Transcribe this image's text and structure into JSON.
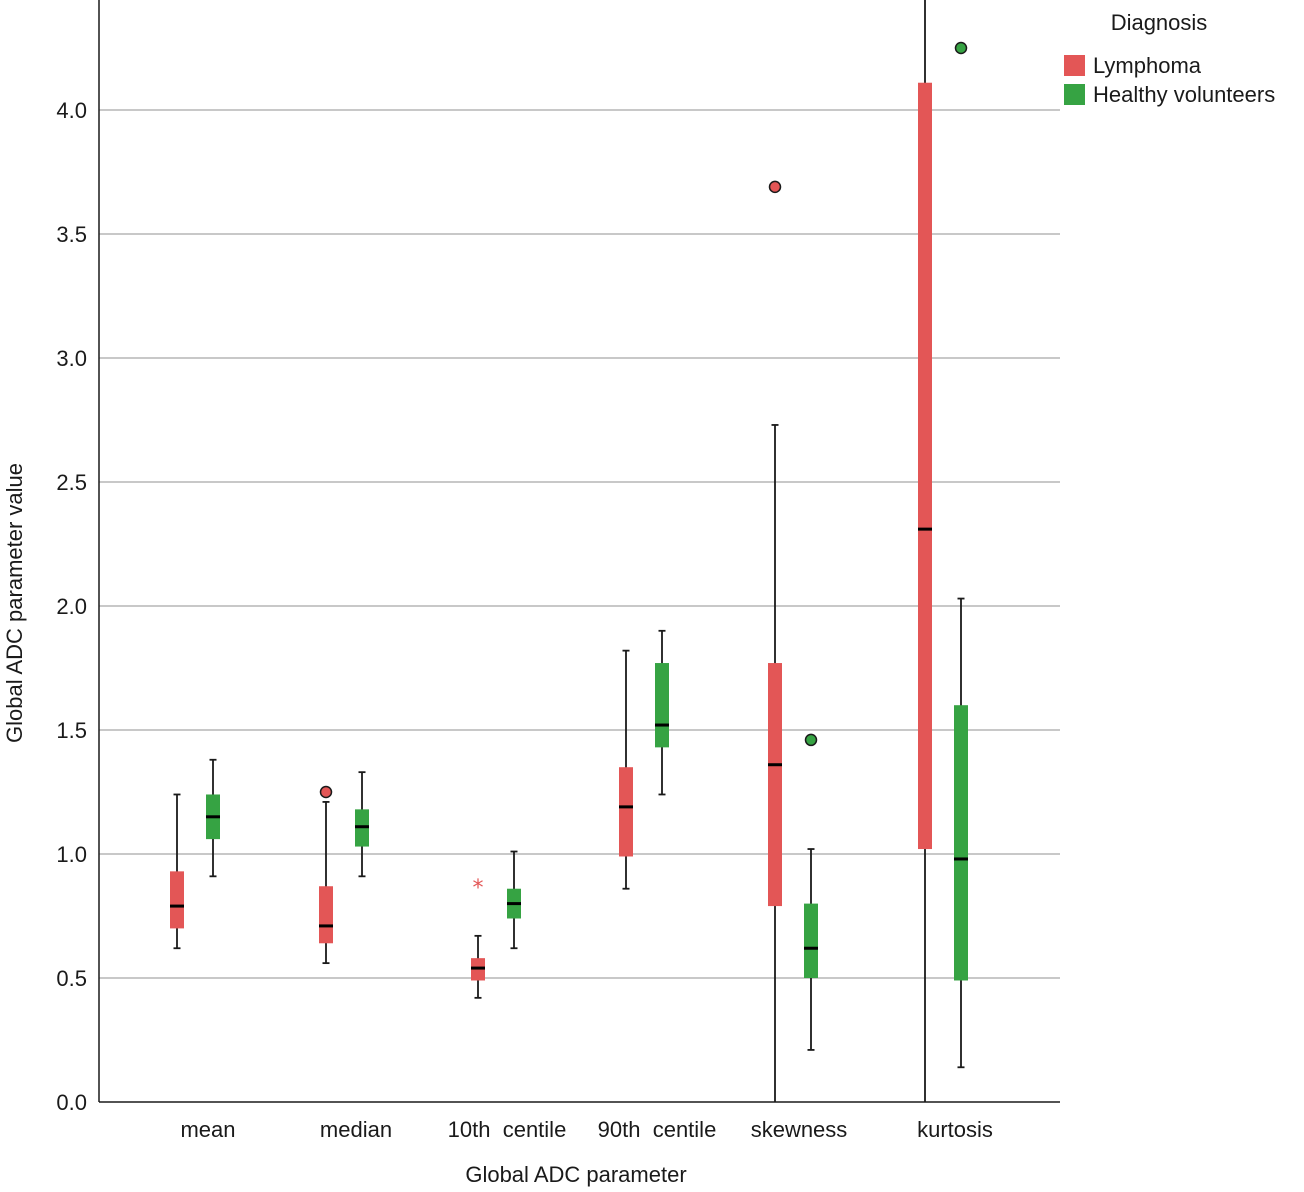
{
  "chart_data": {
    "type": "boxplot",
    "xlabel": "Global ADC parameter",
    "ylabel": "Global ADC parameter value",
    "ylim": [
      0.0,
      4.4
    ],
    "yticks": [
      0.0,
      0.5,
      1.0,
      1.5,
      2.0,
      2.5,
      3.0,
      3.5,
      4.0
    ],
    "ytick_labels": [
      "0.0",
      "0.5",
      "1.0",
      "1.5",
      "2.0",
      "2.5",
      "3.0",
      "3.5",
      "4.0"
    ],
    "categories": [
      "mean",
      "median",
      "10th  centile",
      "90th  centile",
      "skewness",
      "kurtosis"
    ],
    "grid": "horizontal",
    "legend": {
      "title": "Diagnosis",
      "placement": "top-right",
      "entries": [
        "Lymphoma",
        "Healthy volunteers"
      ]
    },
    "series": [
      {
        "name": "Lymphoma",
        "color": "#e35656",
        "boxes": [
          {
            "whisker_low": 0.62,
            "q1": 0.7,
            "median": 0.79,
            "q3": 0.93,
            "whisker_high": 1.24,
            "outliers": []
          },
          {
            "whisker_low": 0.56,
            "q1": 0.64,
            "median": 0.71,
            "q3": 0.87,
            "whisker_high": 1.21,
            "outliers": [
              1.25
            ]
          },
          {
            "whisker_low": 0.42,
            "q1": 0.49,
            "median": 0.54,
            "q3": 0.58,
            "whisker_high": 0.67,
            "extremes": [
              0.88
            ]
          },
          {
            "whisker_low": 0.86,
            "q1": 0.99,
            "median": 1.19,
            "q3": 1.35,
            "whisker_high": 1.82,
            "outliers": []
          },
          {
            "whisker_low": 0.0,
            "q1": 0.79,
            "median": 1.36,
            "q3": 1.77,
            "whisker_high": 2.73,
            "outliers": [
              3.69
            ]
          },
          {
            "whisker_low": 0.0,
            "q1": 1.02,
            "median": 2.31,
            "q3": 4.11,
            "whisker_high": 4.45,
            "outliers": []
          }
        ]
      },
      {
        "name": "Healthy volunteers",
        "color": "#36a343",
        "boxes": [
          {
            "whisker_low": 0.91,
            "q1": 1.06,
            "median": 1.15,
            "q3": 1.24,
            "whisker_high": 1.38,
            "outliers": []
          },
          {
            "whisker_low": 0.91,
            "q1": 1.03,
            "median": 1.11,
            "q3": 1.18,
            "whisker_high": 1.33,
            "outliers": []
          },
          {
            "whisker_low": 0.62,
            "q1": 0.74,
            "median": 0.8,
            "q3": 0.86,
            "whisker_high": 1.01,
            "outliers": []
          },
          {
            "whisker_low": 1.24,
            "q1": 1.43,
            "median": 1.52,
            "q3": 1.77,
            "whisker_high": 1.9,
            "outliers": []
          },
          {
            "whisker_low": 0.21,
            "q1": 0.5,
            "median": 0.62,
            "q3": 0.8,
            "whisker_high": 1.02,
            "outliers": [
              1.46
            ]
          },
          {
            "whisker_low": 0.14,
            "q1": 0.49,
            "median": 0.98,
            "q3": 1.6,
            "whisker_high": 2.03,
            "outliers": [
              4.25
            ]
          }
        ]
      }
    ]
  }
}
